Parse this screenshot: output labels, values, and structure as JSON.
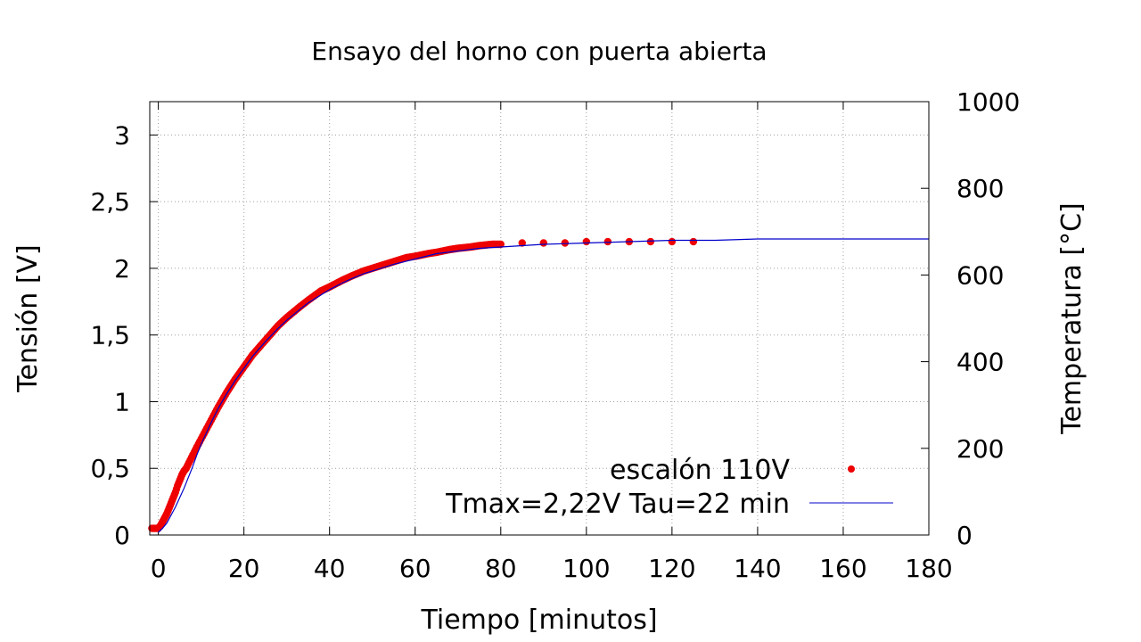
{
  "chart_data": {
    "type": "scatter",
    "title": "Ensayo del horno con puerta abierta",
    "xlabel": "Tiempo [minutos]",
    "ylabel": "Tensión [V]",
    "y2label": "Temperatura [°C]",
    "xlim": [
      -2,
      180
    ],
    "ylim": [
      0,
      3.25
    ],
    "y2lim": [
      0,
      1000
    ],
    "xticks": [
      "0",
      "20",
      "40",
      "60",
      "80",
      "100",
      "120",
      "140",
      "160",
      "180"
    ],
    "yticks": [
      "0",
      "0,5",
      "1",
      "1,5",
      "2",
      "2,5",
      "3"
    ],
    "y2ticks": [
      "0",
      "200",
      "400",
      "600",
      "800",
      "1000"
    ],
    "grid": true,
    "legend_position": "bottom-right",
    "colors": {
      "measured": "#ee0000",
      "model": "#0000cc"
    },
    "series": [
      {
        "name": "escalón 110V",
        "style": "points",
        "x": [
          -1.5,
          -1,
          -0.5,
          0,
          0.5,
          1,
          1.5,
          2,
          2.5,
          3,
          3.5,
          4,
          4.5,
          5,
          5.5,
          6,
          6.5,
          9,
          10,
          12,
          14,
          16,
          18,
          20,
          22,
          25,
          28,
          30,
          33,
          35,
          38,
          40,
          43,
          45,
          48,
          50,
          53,
          55,
          58,
          60,
          63,
          65,
          68,
          70,
          73,
          75,
          78,
          80,
          85,
          90,
          95,
          100,
          105,
          110,
          115,
          120,
          125
        ],
        "y": [
          0.05,
          0.05,
          0.05,
          0.05,
          0.07,
          0.1,
          0.13,
          0.16,
          0.2,
          0.24,
          0.28,
          0.32,
          0.37,
          0.41,
          0.45,
          0.48,
          0.5,
          0.66,
          0.72,
          0.84,
          0.96,
          1.07,
          1.17,
          1.26,
          1.35,
          1.46,
          1.57,
          1.63,
          1.71,
          1.76,
          1.83,
          1.86,
          1.91,
          1.94,
          1.98,
          2.0,
          2.03,
          2.05,
          2.08,
          2.09,
          2.11,
          2.12,
          2.14,
          2.15,
          2.16,
          2.17,
          2.18,
          2.18,
          2.19,
          2.19,
          2.19,
          2.2,
          2.2,
          2.2,
          2.2,
          2.2,
          2.2
        ]
      },
      {
        "name": "Tmax=2,22V Tau=22 min",
        "style": "line",
        "x": [
          0,
          1,
          2,
          3,
          4,
          5,
          6,
          7,
          8,
          9,
          10,
          12,
          14,
          16,
          18,
          20,
          22,
          25,
          28,
          30,
          33,
          35,
          38,
          40,
          43,
          45,
          48,
          50,
          55,
          60,
          65,
          70,
          75,
          80,
          90,
          100,
          110,
          120,
          130,
          140,
          150,
          158,
          160,
          170,
          180
        ],
        "y": [
          0.02,
          0.05,
          0.09,
          0.15,
          0.21,
          0.28,
          0.35,
          0.43,
          0.51,
          0.6,
          0.68,
          0.82,
          0.95,
          1.06,
          1.16,
          1.25,
          1.34,
          1.45,
          1.55,
          1.61,
          1.69,
          1.74,
          1.8,
          1.84,
          1.89,
          1.92,
          1.96,
          1.98,
          2.03,
          2.07,
          2.11,
          2.13,
          2.15,
          2.16,
          2.18,
          2.19,
          2.2,
          2.21,
          2.21,
          2.22,
          2.22,
          2.22,
          2.22,
          2.22,
          2.22
        ]
      }
    ]
  }
}
